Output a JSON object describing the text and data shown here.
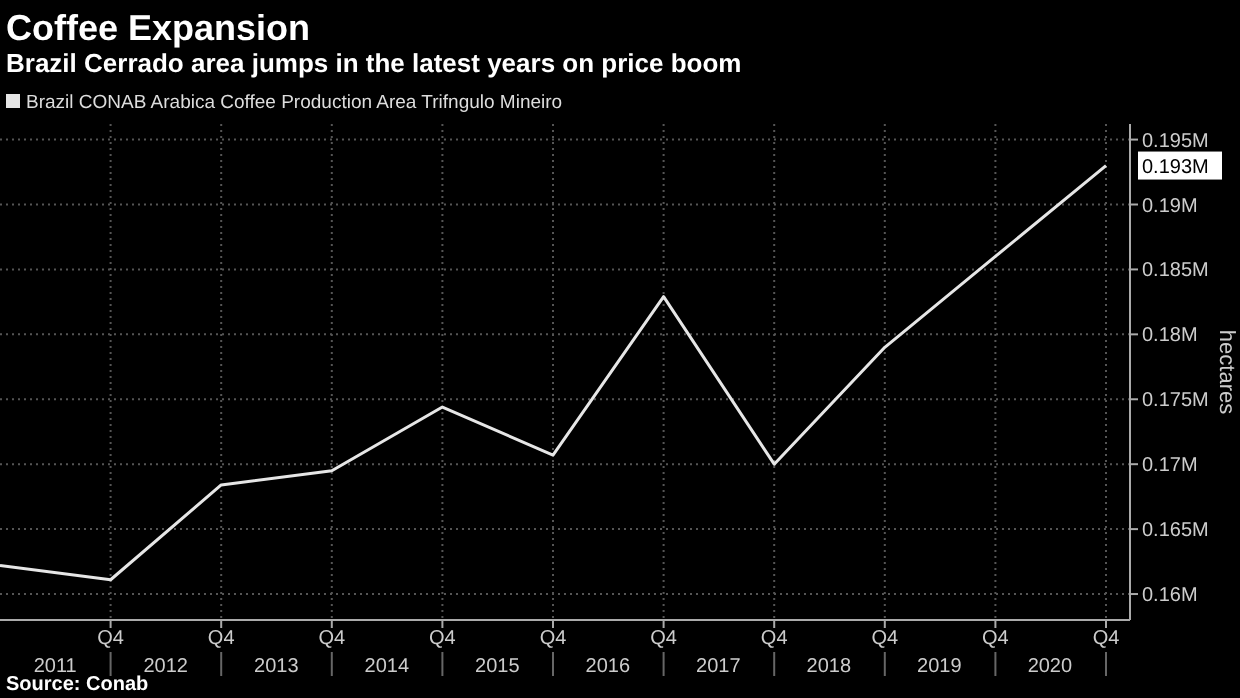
{
  "chart_data": {
    "type": "line",
    "title": "Coffee Expansion",
    "subtitle": "Brazil Cerrado area jumps in the latest years on price boom",
    "ylabel": "hectares",
    "annotations": [
      "0.193M",
      "Source: Conab"
    ],
    "categories": [
      null,
      "Q4",
      "Q4",
      "Q4",
      "Q4",
      "Q4",
      "Q4",
      "Q4",
      "Q4",
      "Q4",
      "Q4"
    ],
    "series": [
      {
        "name": "Brazil CONAB Arabica Coffee Production Area Trifngulo Mineiro",
        "color": "#e6e6e6",
        "values": [
          0.1622,
          0.1611,
          0.1684,
          0.1695,
          0.1744,
          0.1707,
          0.1829,
          0.17,
          0.179,
          0.186,
          0.193
        ]
      }
    ],
    "x2lim": [
      2010.875,
      2021.1
    ],
    "x2ticks": [
      {
        "value": 2011.375,
        "label": "2011"
      },
      {
        "value": 2012.375,
        "label": "2012"
      },
      {
        "value": 2013.375,
        "label": "2013"
      },
      {
        "value": 2014.375,
        "label": "2014"
      },
      {
        "value": 2015.375,
        "label": "2015"
      },
      {
        "value": 2016.375,
        "label": "2016"
      },
      {
        "value": 2017.375,
        "label": "2017"
      },
      {
        "value": 2018.375,
        "label": "2018"
      },
      {
        "value": 2019.375,
        "label": "2019"
      },
      {
        "value": 2020.375,
        "label": "2020"
      }
    ],
    "ylim": [
      0.158,
      0.1962
    ],
    "yticks": [
      {
        "value": 0.16,
        "label": "0.16M"
      },
      {
        "value": 0.165,
        "label": "0.165M"
      },
      {
        "value": 0.17,
        "label": "0.17M"
      },
      {
        "value": 0.175,
        "label": "0.175M"
      },
      {
        "value": 0.18,
        "label": "0.18M"
      },
      {
        "value": 0.185,
        "label": "0.185M"
      },
      {
        "value": 0.19,
        "label": "0.19M"
      },
      {
        "value": 0.195,
        "label": "0.195M"
      }
    ],
    "grid": true,
    "legend": "top left",
    "marker": "none",
    "line_style": "solid"
  }
}
